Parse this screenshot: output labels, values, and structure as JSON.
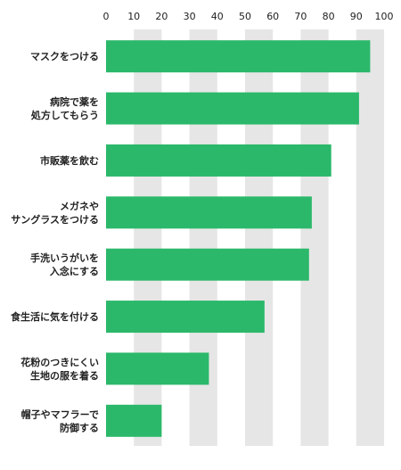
{
  "chart_data": {
    "type": "bar",
    "orientation": "horizontal",
    "categories": [
      [
        "マスクをつける"
      ],
      [
        "病院で薬を",
        "処方してもらう"
      ],
      [
        "市販薬を飲む"
      ],
      [
        "メガネや",
        "サングラスをつける"
      ],
      [
        "手洗いうがいを",
        "入念にする"
      ],
      [
        "食生活に気を付ける"
      ],
      [
        "花粉のつきにくい",
        "生地の服を着る"
      ],
      [
        "帽子やマフラーで",
        "防御する"
      ]
    ],
    "values": [
      95,
      91,
      81,
      74,
      73,
      57,
      37,
      20
    ],
    "xlim": [
      0,
      100
    ],
    "xticks": [
      0,
      10,
      20,
      30,
      40,
      50,
      60,
      70,
      80,
      90,
      100
    ],
    "axis_position": "top",
    "grid": "vertical bands",
    "colors": {
      "bar": "#2bb86a",
      "band": "#e6e6e6",
      "background": "#ffffff",
      "text": "#222222"
    }
  }
}
